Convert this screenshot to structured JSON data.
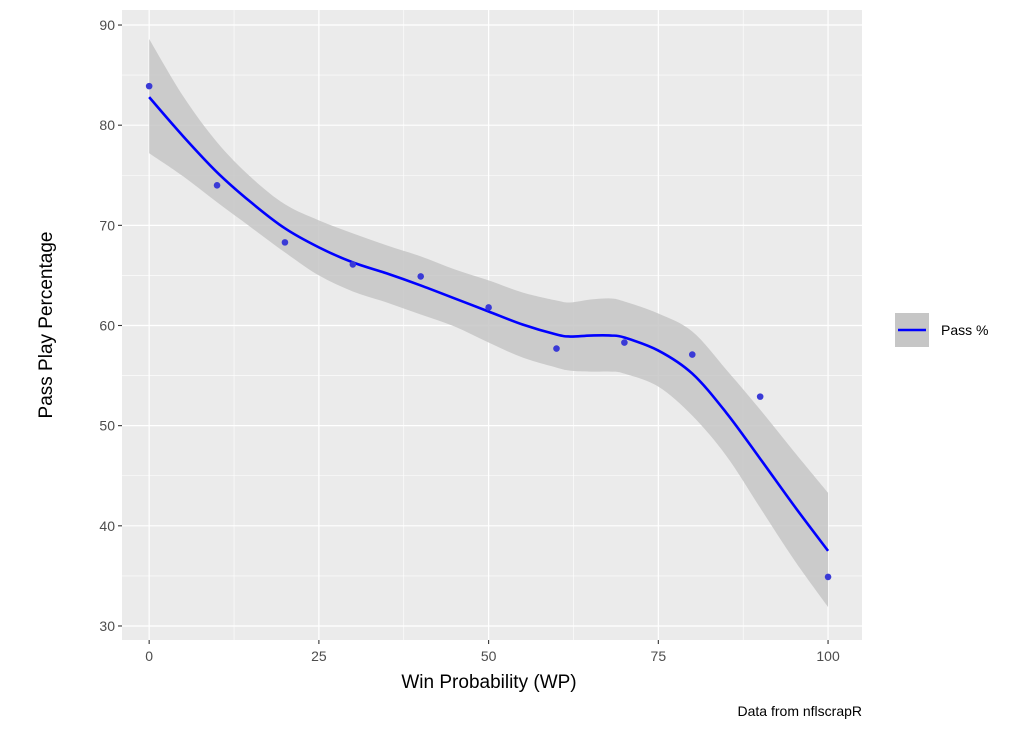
{
  "chart_data": {
    "type": "scatter",
    "title": "",
    "xlabel": "Win Probability (WP)",
    "ylabel": "Pass Play Percentage",
    "caption": "Data from nflscrapR",
    "xlim": [
      -4,
      105
    ],
    "ylim": [
      28.6,
      91.5
    ],
    "x_ticks": [
      0,
      25,
      50,
      75,
      100
    ],
    "y_ticks": [
      30,
      40,
      50,
      60,
      70,
      80,
      90
    ],
    "x_tick_labels": [
      "0",
      "25",
      "50",
      "75",
      "100"
    ],
    "y_tick_labels": [
      "30",
      "40",
      "50",
      "60",
      "70",
      "80",
      "90"
    ],
    "grid": true,
    "legend": {
      "position": "right",
      "entries": [
        {
          "label": "Pass %",
          "color": "#0000ff"
        }
      ]
    },
    "colors": {
      "panel": "#ebebeb",
      "grid": "#ffffff",
      "points": "#3a3ad6",
      "line": "#0000ff",
      "band": "#c6c6c6"
    },
    "points": {
      "x": [
        0,
        10,
        20,
        30,
        40,
        50,
        60,
        70,
        80,
        90,
        100
      ],
      "y": [
        83.9,
        74.0,
        68.3,
        66.1,
        64.9,
        61.8,
        57.7,
        58.3,
        57.1,
        52.9,
        34.9
      ]
    },
    "smooth": {
      "name": "Pass %",
      "x": [
        0,
        5,
        10,
        15,
        20,
        25,
        30,
        35,
        40,
        45,
        50,
        55,
        60,
        62,
        65,
        68,
        70,
        75,
        80,
        85,
        90,
        95,
        100
      ],
      "y": [
        82.8,
        78.9,
        75.3,
        72.3,
        69.7,
        67.8,
        66.3,
        65.2,
        64.0,
        62.7,
        61.4,
        60.1,
        59.1,
        58.9,
        59.0,
        59.0,
        58.8,
        57.5,
        55.2,
        51.3,
        46.7,
        42.0,
        37.5
      ],
      "lower": [
        77.2,
        74.9,
        72.3,
        69.8,
        67.3,
        65.0,
        63.4,
        62.3,
        61.1,
        59.9,
        58.3,
        56.8,
        55.8,
        55.5,
        55.4,
        55.4,
        55.2,
        53.9,
        51.0,
        47.0,
        41.8,
        36.6,
        31.9
      ],
      "upper": [
        88.6,
        82.9,
        78.3,
        74.8,
        72.1,
        70.5,
        69.2,
        68.0,
        66.9,
        65.6,
        64.5,
        63.3,
        62.5,
        62.3,
        62.6,
        62.7,
        62.4,
        61.2,
        59.4,
        55.6,
        51.6,
        47.4,
        43.3
      ]
    }
  }
}
